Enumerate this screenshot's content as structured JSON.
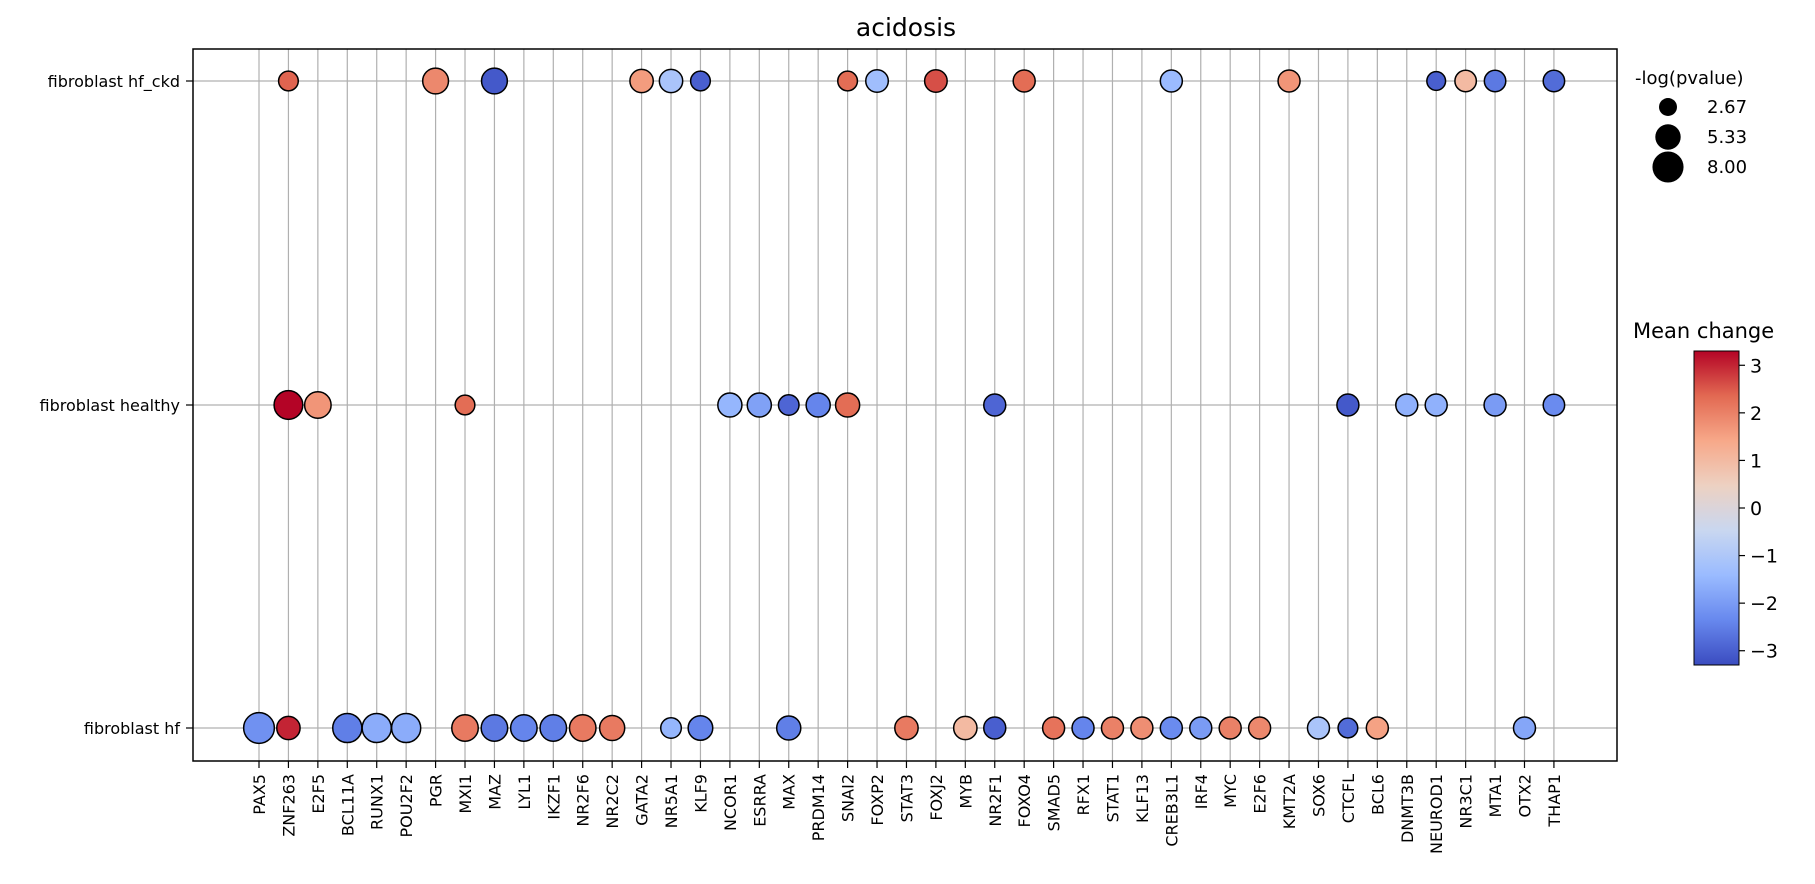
{
  "chart_data": {
    "type": "scatter",
    "title": "acidosis",
    "xlabel": "",
    "ylabel": "",
    "grid": true,
    "categories": [
      "PAX5",
      "ZNF263",
      "E2F5",
      "BCL11A",
      "RUNX1",
      "POU2F2",
      "PGR",
      "MXI1",
      "MAZ",
      "LYL1",
      "IKZF1",
      "NR2F6",
      "NR2C2",
      "GATA2",
      "NR5A1",
      "KLF9",
      "NCOR1",
      "ESRRA",
      "MAX",
      "PRDM14",
      "SNAI2",
      "FOXP2",
      "STAT3",
      "FOXJ2",
      "MYB",
      "NR2F1",
      "FOXO4",
      "SMAD5",
      "RFX1",
      "STAT1",
      "KLF13",
      "CREB3L1",
      "IRF4",
      "MYC",
      "E2F6",
      "KMT2A",
      "SOX6",
      "CTCFL",
      "BCL6",
      "DNMT3B",
      "NEUROD1",
      "NR3C1",
      "MTA1",
      "OTX2",
      "THAP1"
    ],
    "rows": [
      "fibroblast hf_ckd",
      "fibroblast healthy",
      "fibroblast hf"
    ],
    "size_legend": {
      "title": "-log(pvalue)",
      "values": [
        2.67,
        5.33,
        8.0
      ],
      "labels": [
        "2.67",
        "5.33",
        "8.00"
      ],
      "placement": "top-right outside"
    },
    "colorbar": {
      "title": "Mean change",
      "vmin": -3.3,
      "vmax": 3.3,
      "ticks": [
        -3,
        -2,
        -1,
        0,
        1,
        2,
        3
      ],
      "tick_labels": [
        "−3",
        "−2",
        "−1",
        "0",
        "1",
        "2",
        "3"
      ],
      "colormap": "coolwarm",
      "stops": [
        "#3b4cc0",
        "#6788ee",
        "#9abbff",
        "#c9d7f0",
        "#edd1c2",
        "#f7a889",
        "#e26952",
        "#b40426"
      ]
    },
    "points": [
      {
        "tf": "ZNF263",
        "row": "fibroblast hf_ckd",
        "mean_change": 2.4,
        "neglog_p": 3.2
      },
      {
        "tf": "PGR",
        "row": "fibroblast hf_ckd",
        "mean_change": 1.9,
        "neglog_p": 5.5
      },
      {
        "tf": "MAZ",
        "row": "fibroblast hf_ckd",
        "mean_change": -3.1,
        "neglog_p": 5.5
      },
      {
        "tf": "GATA2",
        "row": "fibroblast hf_ckd",
        "mean_change": 1.6,
        "neglog_p": 4.5
      },
      {
        "tf": "NR5A1",
        "row": "fibroblast hf_ckd",
        "mean_change": -1.1,
        "neglog_p": 4.5
      },
      {
        "tf": "KLF9",
        "row": "fibroblast hf_ckd",
        "mean_change": -3.0,
        "neglog_p": 3.2
      },
      {
        "tf": "SNAI2",
        "row": "fibroblast hf_ckd",
        "mean_change": 2.3,
        "neglog_p": 3.2
      },
      {
        "tf": "FOXP2",
        "row": "fibroblast hf_ckd",
        "mean_change": -1.3,
        "neglog_p": 4.2
      },
      {
        "tf": "FOXJ2",
        "row": "fibroblast hf_ckd",
        "mean_change": 2.6,
        "neglog_p": 4.2
      },
      {
        "tf": "FOXO4",
        "row": "fibroblast hf_ckd",
        "mean_change": 2.3,
        "neglog_p": 4.0
      },
      {
        "tf": "CREB3L1",
        "row": "fibroblast hf_ckd",
        "mean_change": -1.4,
        "neglog_p": 4.0
      },
      {
        "tf": "KMT2A",
        "row": "fibroblast hf_ckd",
        "mean_change": 1.7,
        "neglog_p": 4.0
      },
      {
        "tf": "NEUROD1",
        "row": "fibroblast hf_ckd",
        "mean_change": -3.0,
        "neglog_p": 2.9
      },
      {
        "tf": "NR3C1",
        "row": "fibroblast hf_ckd",
        "mean_change": 1.0,
        "neglog_p": 3.8
      },
      {
        "tf": "MTA1",
        "row": "fibroblast hf_ckd",
        "mean_change": -2.6,
        "neglog_p": 3.8
      },
      {
        "tf": "THAP1",
        "row": "fibroblast hf_ckd",
        "mean_change": -2.8,
        "neglog_p": 3.8
      },
      {
        "tf": "ZNF263",
        "row": "fibroblast healthy",
        "mean_change": 3.3,
        "neglog_p": 6.8
      },
      {
        "tf": "E2F5",
        "row": "fibroblast healthy",
        "mean_change": 1.7,
        "neglog_p": 5.8
      },
      {
        "tf": "MXI1",
        "row": "fibroblast healthy",
        "mean_change": 2.3,
        "neglog_p": 3.2
      },
      {
        "tf": "NCOR1",
        "row": "fibroblast healthy",
        "mean_change": -1.5,
        "neglog_p": 4.8
      },
      {
        "tf": "ESRRA",
        "row": "fibroblast healthy",
        "mean_change": -1.9,
        "neglog_p": 4.8
      },
      {
        "tf": "MAX",
        "row": "fibroblast healthy",
        "mean_change": -2.9,
        "neglog_p": 3.5
      },
      {
        "tf": "PRDM14",
        "row": "fibroblast healthy",
        "mean_change": -2.4,
        "neglog_p": 4.8
      },
      {
        "tf": "SNAI2",
        "row": "fibroblast healthy",
        "mean_change": 2.3,
        "neglog_p": 4.8
      },
      {
        "tf": "NR2F1",
        "row": "fibroblast healthy",
        "mean_change": -2.9,
        "neglog_p": 4.0
      },
      {
        "tf": "CTCFL",
        "row": "fibroblast healthy",
        "mean_change": -3.1,
        "neglog_p": 4.0
      },
      {
        "tf": "DNMT3B",
        "row": "fibroblast healthy",
        "mean_change": -1.6,
        "neglog_p": 4.0
      },
      {
        "tf": "NEUROD1",
        "row": "fibroblast healthy",
        "mean_change": -1.6,
        "neglog_p": 4.0
      },
      {
        "tf": "MTA1",
        "row": "fibroblast healthy",
        "mean_change": -2.0,
        "neglog_p": 4.0
      },
      {
        "tf": "THAP1",
        "row": "fibroblast healthy",
        "mean_change": -2.3,
        "neglog_p": 3.8
      },
      {
        "tf": "PAX5",
        "row": "fibroblast hf",
        "mean_change": -2.2,
        "neglog_p": 7.8
      },
      {
        "tf": "ZNF263",
        "row": "fibroblast hf",
        "mean_change": 3.0,
        "neglog_p": 4.5
      },
      {
        "tf": "BCL11A",
        "row": "fibroblast hf",
        "mean_change": -2.5,
        "neglog_p": 7.0
      },
      {
        "tf": "RUNX1",
        "row": "fibroblast hf",
        "mean_change": -1.7,
        "neglog_p": 7.0
      },
      {
        "tf": "POU2F2",
        "row": "fibroblast hf",
        "mean_change": -1.7,
        "neglog_p": 7.0
      },
      {
        "tf": "MXI1",
        "row": "fibroblast hf",
        "mean_change": 2.1,
        "neglog_p": 5.8
      },
      {
        "tf": "MAZ",
        "row": "fibroblast hf",
        "mean_change": -2.6,
        "neglog_p": 5.8
      },
      {
        "tf": "LYL1",
        "row": "fibroblast hf",
        "mean_change": -2.4,
        "neglog_p": 5.8
      },
      {
        "tf": "IKZF1",
        "row": "fibroblast hf",
        "mean_change": -2.5,
        "neglog_p": 5.8
      },
      {
        "tf": "NR2F6",
        "row": "fibroblast hf",
        "mean_change": 2.1,
        "neglog_p": 5.8
      },
      {
        "tf": "NR2C2",
        "row": "fibroblast hf",
        "mean_change": 2.1,
        "neglog_p": 5.2
      },
      {
        "tf": "NR5A1",
        "row": "fibroblast hf",
        "mean_change": -1.5,
        "neglog_p": 3.5
      },
      {
        "tf": "KLF9",
        "row": "fibroblast hf",
        "mean_change": -2.4,
        "neglog_p": 5.0
      },
      {
        "tf": "MAX",
        "row": "fibroblast hf",
        "mean_change": -2.5,
        "neglog_p": 4.8
      },
      {
        "tf": "STAT3",
        "row": "fibroblast hf",
        "mean_change": 2.1,
        "neglog_p": 4.5
      },
      {
        "tf": "MYB",
        "row": "fibroblast hf",
        "mean_change": 1.0,
        "neglog_p": 4.5
      },
      {
        "tf": "NR2F1",
        "row": "fibroblast hf",
        "mean_change": -3.0,
        "neglog_p": 4.0
      },
      {
        "tf": "SMAD5",
        "row": "fibroblast hf",
        "mean_change": 2.2,
        "neglog_p": 4.0
      },
      {
        "tf": "RFX1",
        "row": "fibroblast hf",
        "mean_change": -2.4,
        "neglog_p": 4.0
      },
      {
        "tf": "STAT1",
        "row": "fibroblast hf",
        "mean_change": 2.0,
        "neglog_p": 4.0
      },
      {
        "tf": "KLF13",
        "row": "fibroblast hf",
        "mean_change": 1.8,
        "neglog_p": 4.0
      },
      {
        "tf": "CREB3L1",
        "row": "fibroblast hf",
        "mean_change": -2.3,
        "neglog_p": 4.0
      },
      {
        "tf": "IRF4",
        "row": "fibroblast hf",
        "mean_change": -2.0,
        "neglog_p": 4.0
      },
      {
        "tf": "MYC",
        "row": "fibroblast hf",
        "mean_change": 2.0,
        "neglog_p": 4.0
      },
      {
        "tf": "E2F6",
        "row": "fibroblast hf",
        "mean_change": 1.9,
        "neglog_p": 4.0
      },
      {
        "tf": "SOX6",
        "row": "fibroblast hf",
        "mean_change": -1.1,
        "neglog_p": 4.0
      },
      {
        "tf": "CTCFL",
        "row": "fibroblast hf",
        "mean_change": -2.8,
        "neglog_p": 3.2
      },
      {
        "tf": "BCL6",
        "row": "fibroblast hf",
        "mean_change": 1.5,
        "neglog_p": 4.0
      },
      {
        "tf": "OTX2",
        "row": "fibroblast hf",
        "mean_change": -1.8,
        "neglog_p": 4.0
      }
    ]
  }
}
